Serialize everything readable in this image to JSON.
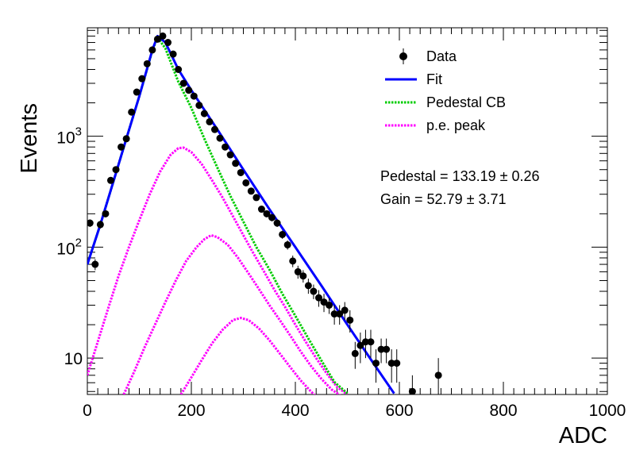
{
  "chart_data": {
    "type": "scatter",
    "xlabel": "ADC",
    "ylabel": "Events",
    "xlim": [
      0,
      1000
    ],
    "ylim": [
      4.7,
      9500
    ],
    "y_scale": "log",
    "x_ticks": [
      {
        "value": 0,
        "label": "0"
      },
      {
        "value": 200,
        "label": "200"
      },
      {
        "value": 400,
        "label": "400"
      },
      {
        "value": 600,
        "label": "600"
      },
      {
        "value": 800,
        "label": "800"
      },
      {
        "value": 1000,
        "label": "1000"
      }
    ],
    "y_ticks": [
      {
        "value": 10,
        "label": "10"
      },
      {
        "value": 100,
        "label": "10",
        "exponent": "2"
      },
      {
        "value": 1000,
        "label": "10",
        "exponent": "3"
      }
    ],
    "legend": {
      "position": "top-right",
      "entries": [
        {
          "label": "Data",
          "color": "#000000",
          "style": "marker"
        },
        {
          "label": "Fit",
          "color": "#0000ff",
          "style": "solid"
        },
        {
          "label": "Pedestal CB",
          "color": "#00cc00",
          "style": "dotted"
        },
        {
          "label": "p.e. peak",
          "color": "#ff00ff",
          "style": "dotted"
        }
      ]
    },
    "annotations": [
      {
        "label": "Pedestal",
        "value": "133.19",
        "error": "0.26"
      },
      {
        "label": "Gain",
        "value": "52.79",
        "error": "3.71"
      }
    ],
    "data_series": {
      "name": "Data",
      "x": [
        5,
        15,
        25,
        35,
        45,
        55,
        65,
        75,
        85,
        95,
        105,
        115,
        125,
        135,
        145,
        155,
        165,
        175,
        185,
        195,
        205,
        215,
        225,
        235,
        245,
        255,
        265,
        275,
        285,
        295,
        305,
        315,
        325,
        335,
        345,
        355,
        365,
        375,
        385,
        395,
        405,
        415,
        425,
        435,
        445,
        455,
        465,
        475,
        485,
        495,
        505,
        515,
        525,
        535,
        545,
        555,
        565,
        575,
        585,
        595,
        625,
        675
      ],
      "y": [
        165,
        70,
        160,
        200,
        400,
        500,
        800,
        950,
        1650,
        2500,
        3300,
        4500,
        6000,
        7500,
        8000,
        7000,
        5500,
        4000,
        3000,
        2600,
        2300,
        1900,
        1600,
        1350,
        1150,
        960,
        800,
        680,
        570,
        470,
        380,
        320,
        280,
        220,
        200,
        185,
        165,
        130,
        105,
        75,
        60,
        55,
        45,
        40,
        35,
        32,
        30,
        25,
        25,
        27,
        22,
        11,
        13,
        14,
        14,
        9,
        12,
        12,
        9,
        9,
        5,
        7
      ],
      "err": [
        13,
        8,
        13,
        14,
        20,
        22,
        28,
        31,
        41,
        50,
        57,
        67,
        77,
        87,
        89,
        84,
        74,
        63,
        55,
        51,
        48,
        44,
        40,
        37,
        34,
        31,
        28,
        26,
        24,
        22,
        19,
        18,
        17,
        15,
        14,
        14,
        13,
        11,
        10,
        9,
        8,
        7,
        7,
        6,
        6,
        6,
        5,
        5,
        5,
        5,
        5,
        3,
        4,
        4,
        4,
        3,
        3,
        3,
        3,
        3,
        2,
        3
      ]
    },
    "curves": [
      {
        "name": "Fit",
        "color": "#0000ff",
        "style": "solid",
        "width": 3,
        "x": [
          0,
          25,
          50,
          75,
          100,
          125,
          135,
          150,
          175,
          200,
          250,
          300,
          350,
          400,
          450,
          500,
          550,
          590
        ],
        "y": [
          70,
          160,
          390,
          950,
          2300,
          6000,
          8000,
          7000,
          4000,
          2600,
          1150,
          500,
          220,
          100,
          45,
          20,
          9,
          4.8
        ]
      },
      {
        "name": "Pedestal CB",
        "color": "#00cc00",
        "style": "dotted",
        "width": 3,
        "x": [
          0,
          25,
          50,
          75,
          100,
          125,
          135,
          150,
          175,
          200,
          225,
          250,
          275,
          300,
          325,
          350,
          375,
          400,
          425,
          450,
          475,
          500
        ],
        "y": [
          70,
          160,
          390,
          950,
          2300,
          5900,
          7800,
          6200,
          3100,
          1800,
          950,
          520,
          290,
          170,
          100,
          63,
          38,
          24,
          15,
          9.5,
          6.1,
          4.8
        ]
      },
      {
        "name": "p.e. peak 1",
        "color": "#ff00ff",
        "style": "dotted",
        "width": 3,
        "x": [
          0,
          20,
          40,
          60,
          80,
          100,
          120,
          140,
          160,
          175,
          185,
          200,
          220,
          240,
          260,
          280,
          300,
          320,
          340,
          360,
          380,
          400,
          420,
          440,
          460,
          480,
          500
        ],
        "y": [
          7,
          14,
          28,
          55,
          100,
          175,
          300,
          480,
          680,
          780,
          790,
          720,
          560,
          400,
          280,
          190,
          128,
          87,
          60,
          41,
          29,
          20,
          14,
          10,
          7.3,
          5.5,
          4.7
        ]
      },
      {
        "name": "p.e. peak 2",
        "color": "#ff00ff",
        "style": "dotted",
        "width": 3,
        "x": [
          70,
          90,
          110,
          130,
          150,
          170,
          190,
          210,
          225,
          238,
          250,
          270,
          290,
          310,
          330,
          350,
          370,
          390,
          410,
          430,
          450,
          470,
          490,
          510
        ],
        "y": [
          4.7,
          7.5,
          12.5,
          20,
          32,
          50,
          75,
          100,
          118,
          128,
          123,
          105,
          80,
          58,
          42,
          30,
          22,
          16,
          11.5,
          8.5,
          6.5,
          5.2,
          4.5,
          4.0
        ]
      },
      {
        "name": "p.e. peak 3",
        "color": "#ff00ff",
        "style": "dotted",
        "width": 3,
        "x": [
          180,
          200,
          220,
          240,
          260,
          280,
          295,
          310,
          330,
          350,
          370,
          390,
          410,
          430,
          445
        ],
        "y": [
          4.7,
          6.7,
          9.6,
          13.6,
          18,
          22,
          23,
          22,
          18.5,
          14.5,
          11,
          8.3,
          6.3,
          5.0,
          4.3
        ]
      }
    ]
  }
}
